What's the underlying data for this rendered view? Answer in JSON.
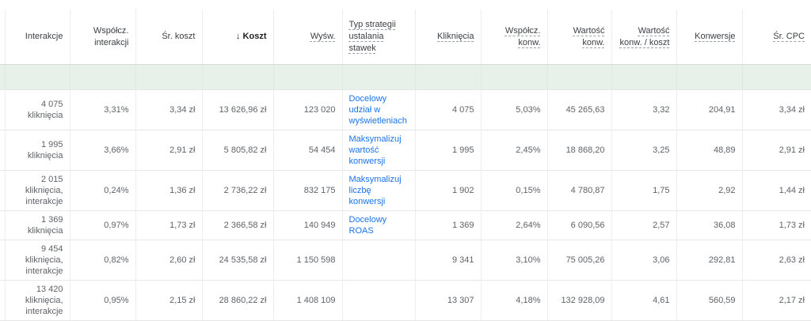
{
  "colors": {
    "highlight_row_bg": "#e7f1ea",
    "link_blue": "#1a73e8",
    "header_text": "#3c4043",
    "cell_text": "#5f6368"
  },
  "table": {
    "columns": [
      {
        "id": "row-label-stub",
        "label": "",
        "align": "left",
        "underlined": false,
        "bold": false,
        "sort_icon": ""
      },
      {
        "id": "interakcje",
        "label": "Interakcje",
        "align": "right",
        "underlined": false,
        "bold": false,
        "sort_icon": ""
      },
      {
        "id": "wspolcz-interakcji",
        "label": "Współcz. interakcji",
        "align": "right",
        "underlined": false,
        "bold": false,
        "sort_icon": ""
      },
      {
        "id": "sr-koszt",
        "label": "Śr. koszt",
        "align": "right",
        "underlined": false,
        "bold": false,
        "sort_icon": ""
      },
      {
        "id": "koszt",
        "label": "Koszt",
        "align": "right",
        "underlined": false,
        "bold": true,
        "sort_icon": "↓"
      },
      {
        "id": "wysw",
        "label": "Wyśw.",
        "align": "right",
        "underlined": true,
        "bold": false,
        "sort_icon": ""
      },
      {
        "id": "typ-strategii",
        "label": "Typ strategii ustalania stawek",
        "align": "left",
        "underlined": true,
        "bold": false,
        "sort_icon": ""
      },
      {
        "id": "klikniecia",
        "label": "Kliknięcia",
        "align": "right",
        "underlined": true,
        "bold": false,
        "sort_icon": ""
      },
      {
        "id": "wspolcz-konw",
        "label": "Współcz. konw.",
        "align": "right",
        "underlined": true,
        "bold": false,
        "sort_icon": ""
      },
      {
        "id": "wartosc-konw",
        "label": "Wartość konw.",
        "align": "right",
        "underlined": true,
        "bold": false,
        "sort_icon": ""
      },
      {
        "id": "wartosc-konw-koszt",
        "label": "Wartość konw. / koszt",
        "align": "right",
        "underlined": true,
        "bold": false,
        "sort_icon": ""
      },
      {
        "id": "konwersje",
        "label": "Konwersje",
        "align": "right",
        "underlined": true,
        "bold": false,
        "sort_icon": ""
      },
      {
        "id": "sr-cpc",
        "label": "Śr. CPC",
        "align": "right",
        "underlined": true,
        "bold": false,
        "sort_icon": ""
      }
    ],
    "highlight_row": {
      "cells": [
        "",
        "",
        "",
        "",
        "",
        "",
        "",
        "",
        "",
        "",
        "",
        "",
        ""
      ]
    },
    "rows": [
      {
        "cells": [
          "",
          "4 075\nkliknięcia",
          "3,31%",
          "3,34 zł",
          "13 626,96 zł",
          "123 020",
          "Docelowy udział w wyświetleniach",
          "4 075",
          "5,03%",
          "45 265,63",
          "3,32",
          "204,91",
          "3,34 zł"
        ]
      },
      {
        "cells": [
          "",
          "1 995\nkliknięcia",
          "3,66%",
          "2,91 zł",
          "5 805,82 zł",
          "54 454",
          "Maksymalizuj wartość konwersji",
          "1 995",
          "2,45%",
          "18 868,20",
          "3,25",
          "48,89",
          "2,91 zł"
        ]
      },
      {
        "cells": [
          "",
          "2 015\nkliknięcia,\ninterakcje",
          "0,24%",
          "1,36 zł",
          "2 736,22 zł",
          "832 175",
          "Maksymalizuj liczbę konwersji",
          "1 902",
          "0,15%",
          "4 780,87",
          "1,75",
          "2,92",
          "1,44 zł"
        ]
      },
      {
        "cells": [
          "",
          "1 369\nkliknięcia",
          "0,97%",
          "1,73 zł",
          "2 366,58 zł",
          "140 949",
          "Docelowy ROAS",
          "1 369",
          "2,64%",
          "6 090,56",
          "2,57",
          "36,08",
          "1,73 zł"
        ]
      },
      {
        "cells": [
          "",
          "9 454\nkliknięcia,\ninterakcje",
          "0,82%",
          "2,60 zł",
          "24 535,58 zł",
          "1 150 598",
          "",
          "9 341",
          "3,10%",
          "75 005,26",
          "3,06",
          "292,81",
          "2,63 zł"
        ]
      },
      {
        "cells": [
          "",
          "13 420\nkliknięcia,\ninterakcje",
          "0,95%",
          "2,15 zł",
          "28 860,22 zł",
          "1 408 109",
          "",
          "13 307",
          "4,18%",
          "132 928,09",
          "4,61",
          "560,59",
          "2,17 zł"
        ]
      }
    ]
  }
}
